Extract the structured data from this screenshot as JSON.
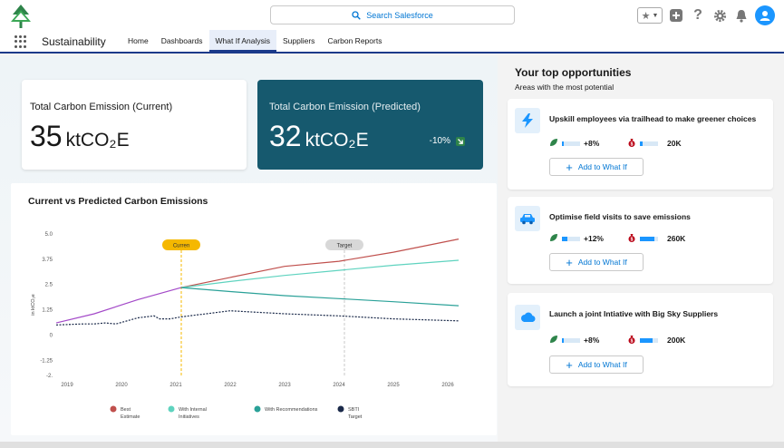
{
  "search": {
    "placeholder": "Search Salesforce"
  },
  "app": {
    "name": "Sustainability"
  },
  "tabs": [
    {
      "label": "Home",
      "active": false
    },
    {
      "label": "Dashboards",
      "active": false
    },
    {
      "label": "What If Analysis",
      "active": true
    },
    {
      "label": "Suppliers",
      "active": false
    },
    {
      "label": "Carbon Reports",
      "active": false
    }
  ],
  "kpi_current": {
    "label": "Total Carbon Emission (Current)",
    "value": "35",
    "unit": "ktCO₂E"
  },
  "kpi_predicted": {
    "label": "Total Carbon Emission (Predicted)",
    "value": "32",
    "unit": "ktCO₂E",
    "delta": "-10%"
  },
  "colors": {
    "accent": "#0176d3",
    "predicted_card": "#16596e",
    "best_estimate": "#c0504d",
    "internal_initiatives": "#5fd3bf",
    "recommendations": "#2aa198",
    "sbti_target": "#1b2a4a"
  },
  "chart_data": {
    "type": "line",
    "title": "Current vs Predicted Carbon Emissions",
    "ylabel": "in ktCO₂e",
    "xlabel": "",
    "ylim": [
      -2,
      5
    ],
    "xlim": [
      2018.8,
      2026.2
    ],
    "x_ticks": [
      "2019",
      "2020",
      "2021",
      "2022",
      "2023",
      "2024",
      "2025",
      "2026"
    ],
    "y_ticks": [
      "5.0",
      "3.75",
      "2.5",
      "1.25",
      "0",
      "-1.25",
      "-2."
    ],
    "y_tick_values": [
      5.0,
      3.75,
      2.5,
      1.25,
      0,
      -1.25,
      -2.0
    ],
    "markers": [
      {
        "label": "Curren",
        "x": 2021.1
      },
      {
        "label": "Target",
        "x": 2024.1
      }
    ],
    "legend_position": "bottom",
    "series": [
      {
        "name": "Best Estimate",
        "x": [
          2021.1,
          2022,
          2023,
          2024,
          2025,
          2026.2
        ],
        "y": [
          2.35,
          2.85,
          3.4,
          3.65,
          4.1,
          4.75
        ]
      },
      {
        "name": "With Internal Initiatives",
        "x": [
          2021.1,
          2022,
          2023,
          2024,
          2025,
          2026.2
        ],
        "y": [
          2.35,
          2.65,
          2.95,
          3.2,
          3.45,
          3.7
        ]
      },
      {
        "name": "With Recommendations",
        "x": [
          2021.1,
          2022,
          2023,
          2024,
          2025,
          2026.2
        ],
        "y": [
          2.35,
          2.15,
          1.95,
          1.8,
          1.65,
          1.45
        ]
      },
      {
        "name": "SBTI Target",
        "x": [
          2018.8,
          2019.3,
          2019.5,
          2019.7,
          2019.9,
          2020.3,
          2020.6,
          2020.7,
          2020.9,
          2021.1,
          2022,
          2023,
          2024,
          2025,
          2026.2
        ],
        "y": [
          0.5,
          0.55,
          0.55,
          0.6,
          0.55,
          0.85,
          0.95,
          0.8,
          0.8,
          0.9,
          1.2,
          1.05,
          0.95,
          0.8,
          0.7
        ]
      }
    ],
    "history": {
      "x": [
        2018.8,
        2019.5,
        2020.3,
        2021.1
      ],
      "y": [
        0.6,
        1.05,
        1.75,
        2.35
      ]
    }
  },
  "opportunities": {
    "title": "Your top opportunities",
    "subtitle": "Areas with the most potential",
    "items": [
      {
        "icon": "lightning-icon",
        "title": "Upskill employees via trailhead to make greener choices",
        "reduction": "+8%",
        "reduction_fill": 0.1,
        "cost": "20K",
        "cost_fill": 0.15,
        "button": "Add to What If"
      },
      {
        "icon": "car-icon",
        "title": "Optimise field visits to save emissions",
        "reduction": "+12%",
        "reduction_fill": 0.3,
        "cost": "260K",
        "cost_fill": 0.8,
        "button": "Add to What If"
      },
      {
        "icon": "cloud-icon",
        "title": "Launch a joint Intiative with Big Sky Suppliers",
        "reduction": "+8%",
        "reduction_fill": 0.1,
        "cost": "200K",
        "cost_fill": 0.7,
        "button": "Add to What If"
      }
    ]
  }
}
